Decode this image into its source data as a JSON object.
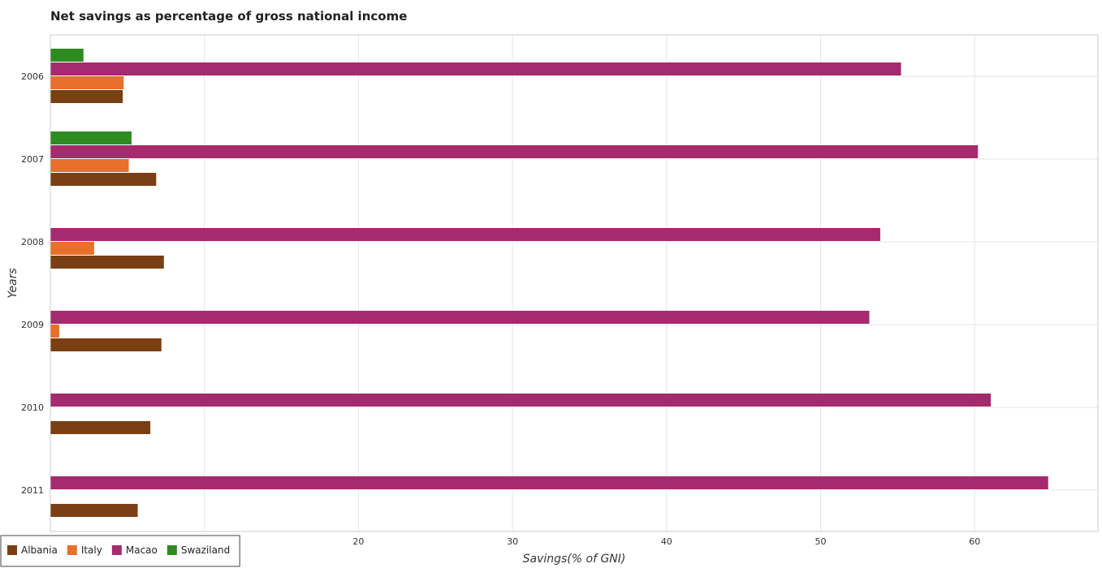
{
  "chart_data": {
    "type": "bar",
    "orientation": "horizontal",
    "title": "Net savings as percentage of gross national income",
    "xlabel": "Savings(% of GNI)",
    "ylabel": "Years",
    "categories": [
      "2006",
      "2007",
      "2008",
      "2009",
      "2010",
      "2011"
    ],
    "series": [
      {
        "name": "Albania",
        "color": "#7a3f12",
        "values": [
          4.7,
          6.87,
          7.37,
          7.21,
          6.49,
          5.67
        ]
      },
      {
        "name": "Italy",
        "color": "#e8702a",
        "values": [
          4.76,
          5.09,
          2.84,
          0.58,
          0,
          0
        ]
      },
      {
        "name": "Macao",
        "color": "#a62a6e",
        "values": [
          55.22,
          60.21,
          53.87,
          53.16,
          61.05,
          64.77
        ]
      },
      {
        "name": "Swaziland",
        "color": "#2e8b22",
        "values": [
          2.15,
          5.27,
          0,
          0,
          0,
          0
        ]
      }
    ],
    "xticks": [
      0,
      10,
      20,
      30,
      40,
      50,
      60
    ],
    "xlim": [
      0,
      68
    ],
    "grid": true,
    "legend_position": "bottom-left"
  }
}
